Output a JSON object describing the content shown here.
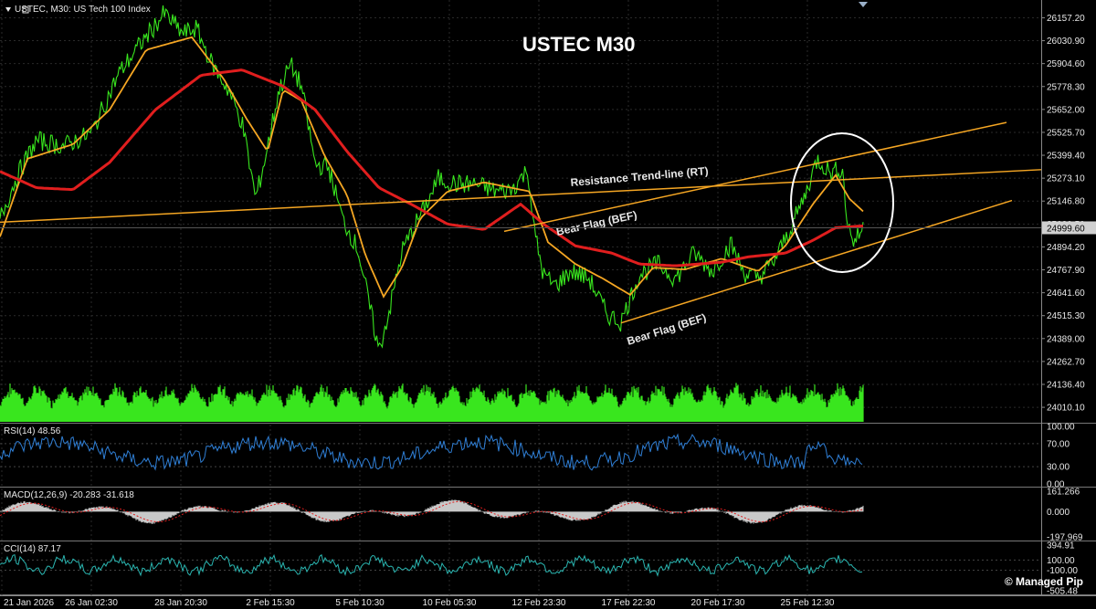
{
  "header": {
    "symbol_info": "USTEC, M30:  US Tech 100 Index"
  },
  "chart_title": "USTEC M30",
  "watermark": "© Managed Pip",
  "colors": {
    "background": "#000000",
    "grid": "#2a2a2a",
    "price": "#39e61e",
    "fast_ma": "#f5a623",
    "slow_ma": "#e01e1e",
    "trendline": "#f5a623",
    "volume": "#39e61e",
    "rsi": "#2f7fd6",
    "macd_hist": "#c8c8c8",
    "macd_signal": "#e01e1e",
    "cci": "#2ab5b0",
    "axis_text": "#e8e8e8",
    "price_label_bg": "#d0d0d0"
  },
  "price_axis": {
    "ticks": [
      "26157.20",
      "26030.90",
      "25904.60",
      "25778.30",
      "25652.00",
      "25525.70",
      "25399.40",
      "25273.10",
      "25146.80",
      "25020.50",
      "24894.20",
      "24767.90",
      "24641.60",
      "24515.30",
      "24389.00",
      "24262.70",
      "24136.40",
      "24010.10"
    ],
    "current_price": "24999.60",
    "range": [
      23930,
      26230
    ]
  },
  "time_axis": {
    "labels": [
      "21 Jan 2026",
      "26 Jan 02:30",
      "28 Jan 20:30",
      "2 Feb 15:30",
      "5 Feb 10:30",
      "10 Feb 05:30",
      "12 Feb 23:30",
      "17 Feb 22:30",
      "20 Feb 17:30",
      "25 Feb 12:30"
    ]
  },
  "annotations": {
    "resistance": "Resistance Trend-line (RT)",
    "bear_flag_upper": "Bear Flag (BEF)",
    "bear_flag_lower": "Bear Flag (BEF)"
  },
  "subwindows": {
    "rsi": {
      "label": "RSI(14) 48.56",
      "ticks": [
        "100.00",
        "70.00",
        "30.00",
        "0.00"
      ]
    },
    "macd": {
      "label": "MACD(12,26,9) -20.283 -31.618",
      "ticks": [
        "161.266",
        "0.000",
        "-197.969"
      ]
    },
    "cci": {
      "label": "CCI(14) 87.17",
      "ticks": [
        "394.91",
        "100.00",
        "-100.00",
        "-505.48"
      ]
    }
  },
  "chart_data": {
    "type": "line",
    "title": "USTEC M30",
    "symbol": "USTEC",
    "timeframe": "M30",
    "x": [
      "21 Jan 2026",
      "26 Jan 02:30",
      "28 Jan 20:30",
      "2 Feb 15:30",
      "5 Feb 10:30",
      "10 Feb 05:30",
      "12 Feb 23:30",
      "17 Feb 22:30",
      "20 Feb 17:30",
      "25 Feb 12:30"
    ],
    "ylim": [
      23930,
      26230
    ],
    "price_anchors": [
      [
        0,
        25050
      ],
      [
        20,
        25300
      ],
      [
        40,
        25480
      ],
      [
        70,
        25450
      ],
      [
        100,
        25520
      ],
      [
        130,
        25850
      ],
      [
        155,
        26020
      ],
      [
        180,
        26180
      ],
      [
        200,
        26070
      ],
      [
        215,
        26100
      ],
      [
        232,
        25900
      ],
      [
        250,
        25760
      ],
      [
        265,
        25580
      ],
      [
        280,
        25160
      ],
      [
        292,
        25420
      ],
      [
        305,
        25750
      ],
      [
        318,
        25900
      ],
      [
        330,
        25780
      ],
      [
        345,
        25350
      ],
      [
        360,
        25330
      ],
      [
        375,
        25050
      ],
      [
        392,
        24880
      ],
      [
        405,
        24560
      ],
      [
        415,
        24320
      ],
      [
        428,
        24580
      ],
      [
        440,
        24870
      ],
      [
        455,
        25020
      ],
      [
        470,
        25160
      ],
      [
        480,
        25270
      ],
      [
        500,
        25240
      ],
      [
        520,
        25240
      ],
      [
        545,
        25200
      ],
      [
        560,
        25210
      ],
      [
        578,
        25320
      ],
      [
        585,
        24980
      ],
      [
        595,
        24740
      ],
      [
        608,
        24680
      ],
      [
        625,
        24760
      ],
      [
        645,
        24720
      ],
      [
        665,
        24520
      ],
      [
        680,
        24480
      ],
      [
        700,
        24740
      ],
      [
        720,
        24800
      ],
      [
        740,
        24720
      ],
      [
        760,
        24860
      ],
      [
        780,
        24760
      ],
      [
        800,
        24910
      ],
      [
        815,
        24750
      ],
      [
        830,
        24720
      ],
      [
        848,
        24820
      ],
      [
        865,
        24990
      ],
      [
        880,
        25160
      ],
      [
        895,
        25380
      ],
      [
        910,
        25300
      ],
      [
        922,
        25330
      ],
      [
        928,
        25020
      ],
      [
        935,
        24920
      ],
      [
        945,
        25000
      ]
    ],
    "fast_ma": [
      [
        0,
        24950
      ],
      [
        30,
        25380
      ],
      [
        80,
        25460
      ],
      [
        120,
        25650
      ],
      [
        160,
        25980
      ],
      [
        210,
        26050
      ],
      [
        245,
        25820
      ],
      [
        270,
        25600
      ],
      [
        293,
        25420
      ],
      [
        310,
        25760
      ],
      [
        330,
        25700
      ],
      [
        355,
        25400
      ],
      [
        380,
        25180
      ],
      [
        400,
        24850
      ],
      [
        420,
        24620
      ],
      [
        440,
        24780
      ],
      [
        460,
        25050
      ],
      [
        490,
        25200
      ],
      [
        530,
        25250
      ],
      [
        580,
        25200
      ],
      [
        600,
        24920
      ],
      [
        630,
        24800
      ],
      [
        660,
        24720
      ],
      [
        690,
        24630
      ],
      [
        715,
        24780
      ],
      [
        750,
        24770
      ],
      [
        790,
        24830
      ],
      [
        830,
        24760
      ],
      [
        860,
        24900
      ],
      [
        890,
        25130
      ],
      [
        915,
        25290
      ],
      [
        930,
        25160
      ],
      [
        945,
        25090
      ]
    ],
    "slow_ma": [
      [
        0,
        25310
      ],
      [
        40,
        25220
      ],
      [
        80,
        25210
      ],
      [
        120,
        25360
      ],
      [
        170,
        25650
      ],
      [
        220,
        25840
      ],
      [
        265,
        25870
      ],
      [
        310,
        25780
      ],
      [
        345,
        25650
      ],
      [
        380,
        25420
      ],
      [
        415,
        25220
      ],
      [
        450,
        25130
      ],
      [
        490,
        25020
      ],
      [
        530,
        24990
      ],
      [
        570,
        25130
      ],
      [
        595,
        25020
      ],
      [
        630,
        24900
      ],
      [
        670,
        24860
      ],
      [
        700,
        24800
      ],
      [
        740,
        24790
      ],
      [
        790,
        24810
      ],
      [
        820,
        24840
      ],
      [
        860,
        24860
      ],
      [
        890,
        24930
      ],
      [
        915,
        25000
      ],
      [
        945,
        25010
      ]
    ],
    "series": [
      {
        "name": "Resistance Trend-line (RT)",
        "type": "trendline",
        "values": [
          [
            0,
            25030
          ],
          [
            1140,
            25320
          ]
        ]
      },
      {
        "name": "Bear Flag (BEF)",
        "type": "trendline",
        "values": [
          [
            552,
            24980
          ],
          [
            1102,
            25580
          ]
        ]
      },
      {
        "name": "Bear Flag (BEF)",
        "type": "trendline",
        "values": [
          [
            680,
            24475
          ],
          [
            1108,
            25150
          ]
        ]
      }
    ],
    "current_price": 24999.6,
    "rsi_last": 48.56,
    "macd_last": [
      -20.283,
      -31.618
    ],
    "cci_last": 87.17,
    "xlabel": "",
    "ylabel": "",
    "grid": true
  }
}
